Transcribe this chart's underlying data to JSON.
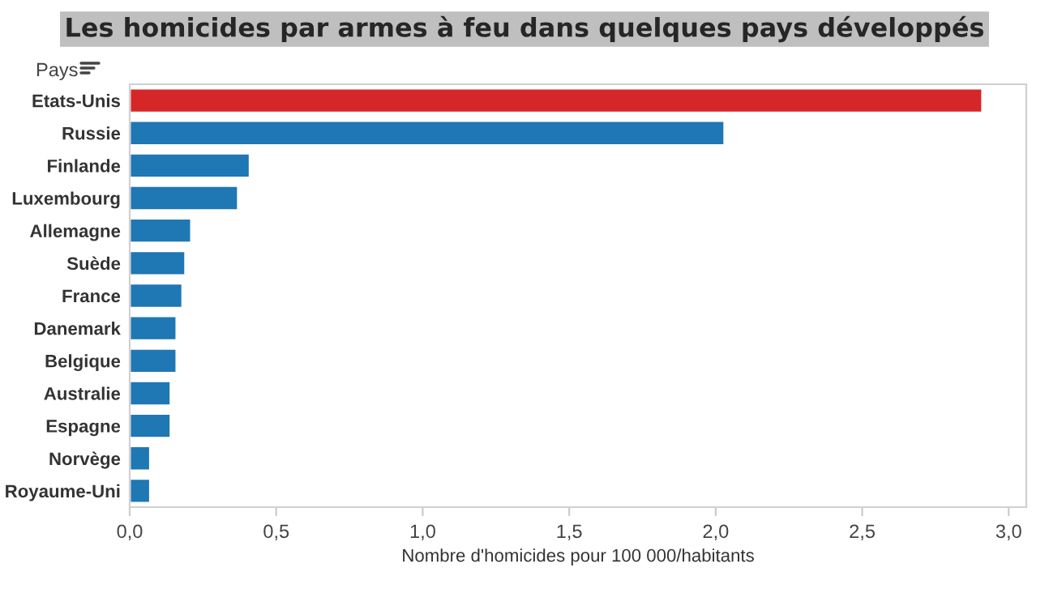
{
  "chart_data": {
    "type": "bar",
    "orientation": "horizontal",
    "title": "Les homicides par armes à feu dans quelques pays développés",
    "xlabel": "Nombre d'homicides pour 100 000/habitants",
    "ylabel": "Pays",
    "categories": [
      "Etats-Unis",
      "Russie",
      "Finlande",
      "Luxembourg",
      "Allemagne",
      "Suède",
      "France",
      "Danemark",
      "Belgique",
      "Australie",
      "Espagne",
      "Norvège",
      "Royaume-Uni"
    ],
    "values": [
      2.91,
      2.03,
      0.41,
      0.37,
      0.21,
      0.19,
      0.18,
      0.16,
      0.16,
      0.14,
      0.14,
      0.07,
      0.07
    ],
    "colors": [
      "#d62728",
      "#1f77b4",
      "#1f77b4",
      "#1f77b4",
      "#1f77b4",
      "#1f77b4",
      "#1f77b4",
      "#1f77b4",
      "#1f77b4",
      "#1f77b4",
      "#1f77b4",
      "#1f77b4",
      "#1f77b4"
    ],
    "xlim": [
      0,
      3.06
    ],
    "xticks": [
      {
        "value": 0,
        "label": "0,0"
      },
      {
        "value": 0.5,
        "label": "0,5"
      },
      {
        "value": 1,
        "label": "1,0"
      },
      {
        "value": 1.5,
        "label": "1,5"
      },
      {
        "value": 2,
        "label": "2,0"
      },
      {
        "value": 2.5,
        "label": "2,5"
      },
      {
        "value": 3,
        "label": "3,0"
      }
    ],
    "grid": false,
    "legend": false
  }
}
